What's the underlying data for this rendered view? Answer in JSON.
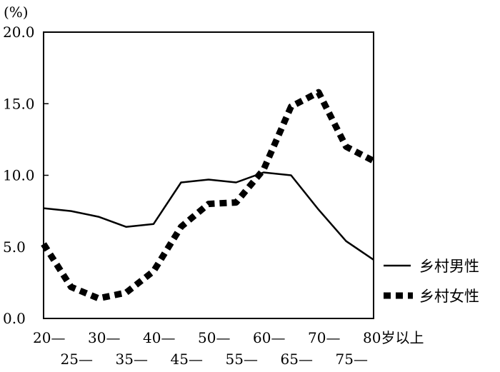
{
  "chart_data": {
    "type": "line",
    "unit_label": "(%)",
    "ylim": [
      0,
      20
    ],
    "y_ticks": [
      "0.0",
      "5.0",
      "10.0",
      "15.0",
      "20.0"
    ],
    "x_ticks_row1": [
      "20—",
      "30—",
      "40—",
      "50—",
      "60—",
      "70—",
      "80岁以上"
    ],
    "x_ticks_row2": [
      "25—",
      "35—",
      "45—",
      "55—",
      "65—",
      "75—"
    ],
    "x": [
      "20—",
      "25—",
      "30—",
      "35—",
      "40—",
      "45—",
      "50—",
      "55—",
      "60—",
      "65—",
      "70—",
      "75—",
      "80岁以上"
    ],
    "grid": false,
    "legend_position": "right",
    "series": [
      {
        "name": "乡村男性",
        "style": "solid",
        "color": "#000000",
        "values": [
          7.7,
          7.5,
          7.1,
          6.4,
          6.6,
          9.5,
          9.7,
          9.5,
          10.2,
          10.0,
          7.6,
          5.4,
          4.1
        ]
      },
      {
        "name": "乡村女性",
        "style": "dotted",
        "color": "#000000",
        "values": [
          5.2,
          2.2,
          1.4,
          1.8,
          3.3,
          6.4,
          8.0,
          8.1,
          10.4,
          14.8,
          15.8,
          12.0,
          11.0
        ]
      }
    ]
  }
}
